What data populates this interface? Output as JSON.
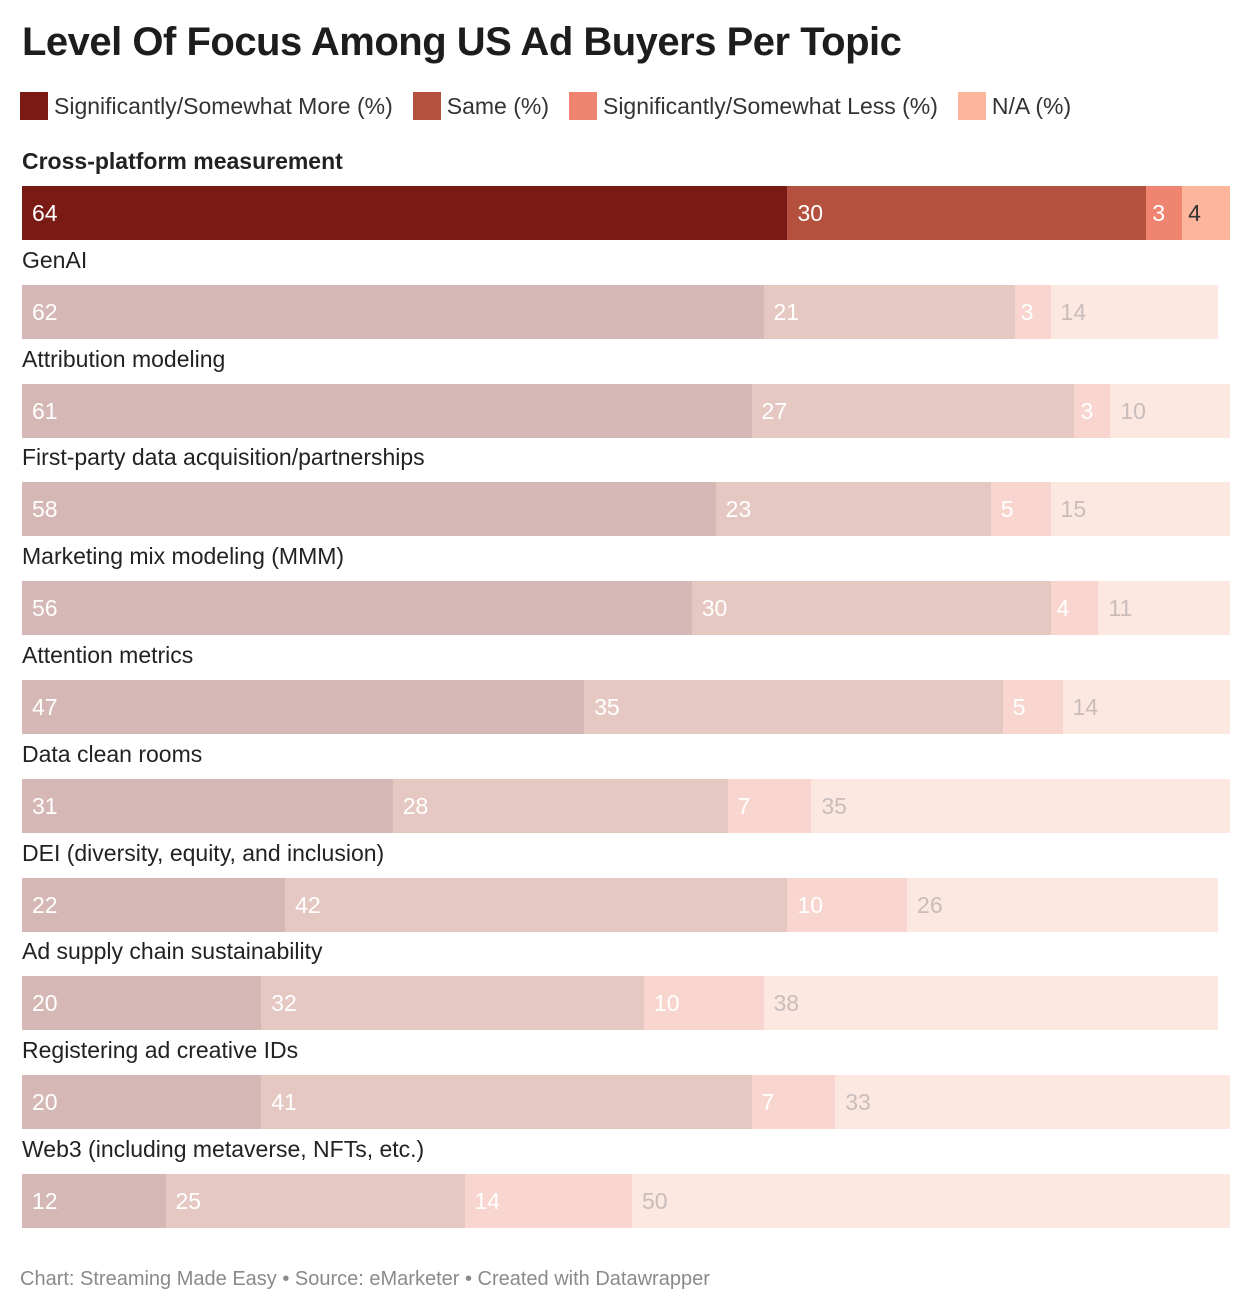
{
  "title": "Level Of Focus Among US Ad Buyers Per Topic",
  "footer": "Chart: Streaming Made Easy • Source: eMarketer • Created with Datawrapper",
  "chart_data": {
    "type": "bar",
    "stacked": true,
    "orientation": "horizontal",
    "title": "Level Of Focus Among US Ad Buyers Per Topic",
    "legend_position": "top",
    "categories": [
      "Cross-platform measurement",
      "GenAI",
      "Attribution modeling",
      "First-party data acquisition/partnerships",
      "Marketing mix modeling (MMM)",
      "Attention metrics",
      "Data clean rooms",
      "DEI (diversity, equity, and inclusion)",
      "Ad supply chain sustainability",
      "Registering ad creative IDs",
      "Web3 (including metaverse, NFTs, etc.)"
    ],
    "highlighted_category": "Cross-platform measurement",
    "series": [
      {
        "name": "Significantly/Somewhat More (%)",
        "color": "#7a1a14",
        "faded_color": "#d5b8b6",
        "values": [
          64,
          62,
          61,
          58,
          56,
          47,
          31,
          22,
          20,
          20,
          12
        ]
      },
      {
        "name": "Same (%)",
        "color": "#b3503e",
        "faded_color": "#e6c8c3",
        "values": [
          30,
          21,
          27,
          23,
          30,
          35,
          28,
          42,
          32,
          41,
          25
        ]
      },
      {
        "name": "Significantly/Somewhat Less (%)",
        "color": "#ef8570",
        "faded_color": "#f8d6cf",
        "values": [
          3,
          3,
          3,
          5,
          4,
          5,
          7,
          10,
          10,
          7,
          14
        ]
      },
      {
        "name": "N/A (%)",
        "color": "#fdb59b",
        "faded_color": "#fde7e1",
        "values": [
          4,
          14,
          10,
          15,
          11,
          14,
          35,
          26,
          38,
          33,
          50
        ]
      }
    ],
    "xlim": [
      0,
      100
    ]
  }
}
